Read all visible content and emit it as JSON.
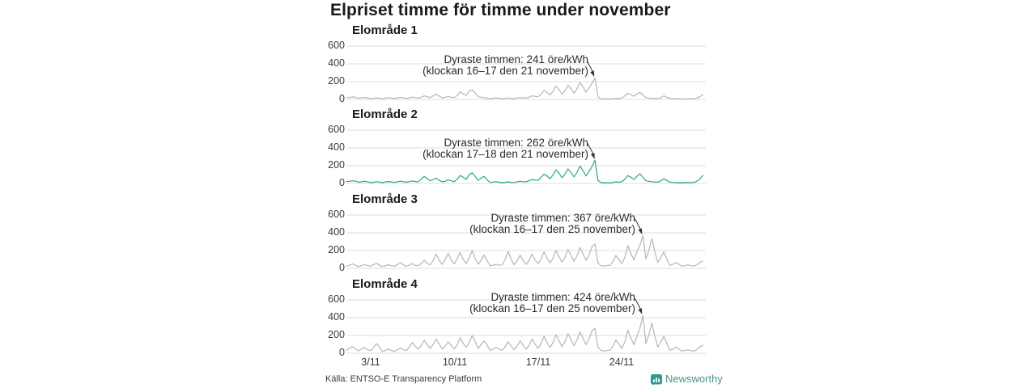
{
  "title": "Elpriset timme för timme under november",
  "source": "Källa: ENTSO-E Transparency Platform",
  "brand": {
    "name": "Newsworthy",
    "color": "#4a968d",
    "icon_color": "#2a9d8f"
  },
  "colors": {
    "default_line": "#b5b4bd",
    "highlight_line": "#2aa68c",
    "grid": "#dcdcdc",
    "annotation": "#333333"
  },
  "chart_data": [
    {
      "type": "line",
      "title": "Elområde 1",
      "unit": "öre/kWh",
      "color": "#b5b4bd",
      "ylim": [
        0,
        650
      ],
      "yticks": [
        0,
        200,
        400,
        600
      ],
      "xticks": [
        "3/11",
        "10/11",
        "17/11",
        "24/11"
      ],
      "x_range": [
        "1/11",
        "30/11"
      ],
      "points_per_day": 4,
      "annotation": {
        "line1": "Dyraste timmen: 241 öre/kWh",
        "line2": "(klockan 16–17 den 21 november)",
        "value": 241,
        "day": 21,
        "hour": 16.5
      },
      "values": [
        18,
        22,
        28,
        24,
        12,
        16,
        22,
        18,
        8,
        12,
        18,
        14,
        10,
        14,
        20,
        16,
        10,
        16,
        24,
        18,
        12,
        18,
        26,
        20,
        15,
        25,
        40,
        30,
        20,
        40,
        60,
        40,
        15,
        25,
        35,
        25,
        20,
        45,
        85,
        60,
        45,
        95,
        110,
        70,
        30,
        25,
        20,
        15,
        10,
        14,
        18,
        12,
        8,
        12,
        16,
        12,
        10,
        15,
        22,
        18,
        15,
        25,
        40,
        35,
        30,
        60,
        100,
        80,
        50,
        90,
        150,
        110,
        60,
        100,
        160,
        120,
        70,
        120,
        190,
        140,
        80,
        130,
        180,
        241,
        30,
        8,
        5,
        6,
        5,
        8,
        12,
        10,
        15,
        40,
        70,
        55,
        35,
        60,
        80,
        50,
        20,
        15,
        12,
        10,
        10,
        20,
        40,
        25,
        12,
        10,
        8,
        6,
        5,
        6,
        8,
        6,
        8,
        15,
        30,
        55
      ]
    },
    {
      "type": "line",
      "title": "Elområde 2",
      "unit": "öre/kWh",
      "color": "#2aa68c",
      "ylim": [
        0,
        650
      ],
      "yticks": [
        0,
        200,
        400,
        600
      ],
      "xticks": [
        "3/11",
        "10/11",
        "17/11",
        "24/11"
      ],
      "x_range": [
        "1/11",
        "30/11"
      ],
      "points_per_day": 4,
      "annotation": {
        "line1": "Dyraste timmen: 262 öre/kWh",
        "line2": "(klockan 17–18 den 21 november)",
        "value": 262,
        "day": 21,
        "hour": 17.5
      },
      "values": [
        20,
        24,
        30,
        26,
        14,
        18,
        24,
        20,
        10,
        14,
        20,
        16,
        10,
        16,
        22,
        18,
        12,
        18,
        26,
        20,
        14,
        20,
        28,
        22,
        18,
        50,
        80,
        55,
        30,
        45,
        60,
        35,
        18,
        25,
        40,
        30,
        20,
        50,
        90,
        70,
        45,
        100,
        120,
        80,
        35,
        60,
        80,
        40,
        12,
        16,
        20,
        14,
        10,
        14,
        18,
        12,
        12,
        18,
        25,
        20,
        18,
        30,
        45,
        38,
        35,
        70,
        105,
        85,
        55,
        95,
        155,
        115,
        65,
        105,
        165,
        125,
        75,
        125,
        195,
        145,
        85,
        135,
        190,
        262,
        35,
        10,
        8,
        8,
        8,
        12,
        18,
        14,
        20,
        50,
        90,
        70,
        45,
        80,
        110,
        70,
        30,
        25,
        20,
        15,
        15,
        30,
        55,
        35,
        15,
        12,
        10,
        8,
        8,
        10,
        12,
        10,
        12,
        25,
        50,
        90
      ]
    },
    {
      "type": "line",
      "title": "Elområde 3",
      "unit": "öre/kWh",
      "color": "#b5b4bd",
      "ylim": [
        0,
        650
      ],
      "yticks": [
        0,
        200,
        400,
        600
      ],
      "xticks": [
        "3/11",
        "10/11",
        "17/11",
        "24/11"
      ],
      "x_range": [
        "1/11",
        "30/11"
      ],
      "points_per_day": 4,
      "annotation": {
        "line1": "Dyraste timmen: 367 öre/kWh",
        "line2": "(klockan 16–17 den 25 november)",
        "value": 367,
        "day": 25,
        "hour": 16.5
      },
      "values": [
        25,
        35,
        50,
        35,
        20,
        30,
        45,
        30,
        25,
        40,
        60,
        35,
        20,
        28,
        40,
        28,
        25,
        40,
        65,
        40,
        25,
        35,
        55,
        35,
        30,
        55,
        90,
        55,
        40,
        90,
        160,
        90,
        45,
        100,
        170,
        95,
        50,
        110,
        180,
        100,
        55,
        120,
        200,
        110,
        45,
        95,
        150,
        85,
        30,
        35,
        45,
        35,
        40,
        100,
        190,
        100,
        40,
        85,
        150,
        90,
        45,
        90,
        160,
        95,
        55,
        105,
        185,
        115,
        60,
        115,
        200,
        130,
        70,
        125,
        215,
        145,
        80,
        140,
        235,
        165,
        90,
        150,
        245,
        275,
        60,
        30,
        25,
        30,
        35,
        75,
        145,
        95,
        55,
        125,
        255,
        165,
        95,
        185,
        260,
        367,
        105,
        205,
        335,
        185,
        65,
        125,
        185,
        105,
        35,
        45,
        65,
        45,
        25,
        30,
        40,
        30,
        25,
        40,
        65,
        85
      ]
    },
    {
      "type": "line",
      "title": "Elområde 4",
      "unit": "öre/kWh",
      "color": "#b5b4bd",
      "ylim": [
        0,
        650
      ],
      "yticks": [
        0,
        200,
        400,
        600
      ],
      "xticks": [
        "3/11",
        "10/11",
        "17/11",
        "24/11"
      ],
      "x_range": [
        "1/11",
        "30/11"
      ],
      "points_per_day": 4,
      "annotation": {
        "line1": "Dyraste timmen: 424 öre/kWh",
        "line2": "(klockan 16–17 den 25 november)",
        "value": 424,
        "day": 25,
        "hour": 16.5
      },
      "values": [
        35,
        55,
        75,
        50,
        25,
        45,
        65,
        40,
        30,
        60,
        110,
        70,
        18,
        30,
        50,
        30,
        22,
        38,
        60,
        40,
        30,
        70,
        120,
        80,
        45,
        90,
        145,
        95,
        55,
        100,
        160,
        105,
        45,
        80,
        130,
        90,
        50,
        95,
        175,
        110,
        65,
        120,
        200,
        130,
        55,
        100,
        140,
        90,
        30,
        45,
        70,
        45,
        35,
        70,
        130,
        80,
        40,
        80,
        140,
        90,
        45,
        90,
        160,
        100,
        55,
        110,
        190,
        120,
        65,
        120,
        210,
        140,
        75,
        130,
        220,
        150,
        85,
        150,
        240,
        170,
        95,
        160,
        250,
        280,
        65,
        35,
        25,
        30,
        35,
        80,
        150,
        100,
        55,
        130,
        260,
        170,
        95,
        190,
        280,
        424,
        110,
        210,
        340,
        190,
        70,
        130,
        190,
        110,
        35,
        45,
        70,
        45,
        25,
        30,
        40,
        30,
        25,
        40,
        70,
        90
      ]
    }
  ]
}
